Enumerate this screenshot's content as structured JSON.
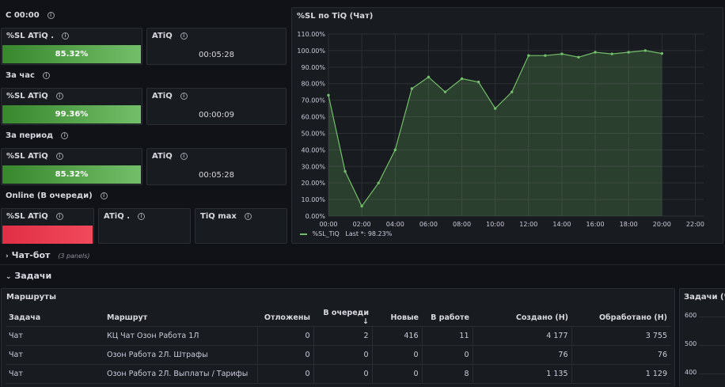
{
  "sections": {
    "since_midnight": "С 00:00",
    "per_hour": "За час",
    "per_period": "За период",
    "online": "Online (В очереди)"
  },
  "stats": {
    "sl_label": "%SL ATiQ .",
    "sl_label_plain": "%SL ATiQ",
    "atiq_label": "ATiQ",
    "atiq_dot_label": "ATiQ .",
    "tiq_max_label": "TiQ max",
    "since_midnight": {
      "sl_value": "85.32%",
      "sl_fill": 1.0,
      "atiq_value": "00:05:28"
    },
    "per_hour": {
      "sl_value": "99.36%",
      "sl_fill": 1.0,
      "atiq_value": "00:00:09"
    },
    "per_period": {
      "sl_value": "85.32%",
      "sl_fill": 1.0,
      "atiq_value": "00:05:28"
    },
    "online": {
      "sl_fill": 1.0
    }
  },
  "chatbot_row": {
    "title": "Чат-бот",
    "meta": "(3 panels)"
  },
  "tasks_row": {
    "title": "Задачи"
  },
  "chart_panel": {
    "title": "%SL по TiQ (Чат)",
    "legend_name": "%SL_TiQ",
    "legend_last": "Last *: 98.23%"
  },
  "chart_data": {
    "type": "area",
    "title": "%SL по TiQ (Чат)",
    "x": [
      "00:00",
      "01:00",
      "02:00",
      "03:00",
      "04:00",
      "05:00",
      "06:00",
      "07:00",
      "08:00",
      "09:00",
      "10:00",
      "11:00",
      "12:00",
      "13:00",
      "14:00",
      "15:00",
      "16:00",
      "17:00",
      "18:00",
      "19:00",
      "20:00"
    ],
    "series": [
      {
        "name": "%SL_TiQ",
        "values": [
          73,
          27,
          6,
          20,
          40,
          77,
          84,
          75,
          83,
          81,
          65,
          75,
          97,
          97,
          98,
          96,
          99,
          98,
          99,
          100,
          98.23
        ]
      }
    ],
    "x_ticks": [
      "00:00",
      "02:00",
      "04:00",
      "06:00",
      "08:00",
      "10:00",
      "12:00",
      "14:00",
      "16:00",
      "18:00",
      "20:00",
      "22:00"
    ],
    "x_range_hours": [
      0,
      22.5
    ],
    "y_ticks": [
      "0.00%",
      "10.00%",
      "20.00%",
      "30.00%",
      "40.00%",
      "50.00%",
      "60.00%",
      "70.00%",
      "80.00%",
      "90.00%",
      "100.00%",
      "110.00%"
    ],
    "ylim": [
      0,
      110
    ],
    "grid": true,
    "legend": "bottom-left",
    "color": "#73bf69"
  },
  "routes": {
    "title": "Маршруты",
    "columns": [
      "Задача",
      "Маршрут",
      "Отложены",
      "В очереди ↓",
      "Новые",
      "В работе",
      "Создано (Н)",
      "Обработано (Н)"
    ],
    "rows": [
      [
        "Чат",
        "КЦ Чат Озон Работа 1Л",
        "0",
        "2",
        "416",
        "11",
        "4 177",
        "3 755"
      ],
      [
        "Чат",
        "Озон Работа 2Л. Штрафы",
        "0",
        "0",
        "0",
        "0",
        "76",
        "76"
      ],
      [
        "Чат",
        "Озон Работа 2Л. Выплаты / Тарифы",
        "0",
        "0",
        "0",
        "8",
        "1 135",
        "1 129"
      ]
    ]
  },
  "tasks_chart": {
    "title": "Задачи (Чат",
    "y_ticks": [
      "600",
      "500",
      "400"
    ]
  }
}
